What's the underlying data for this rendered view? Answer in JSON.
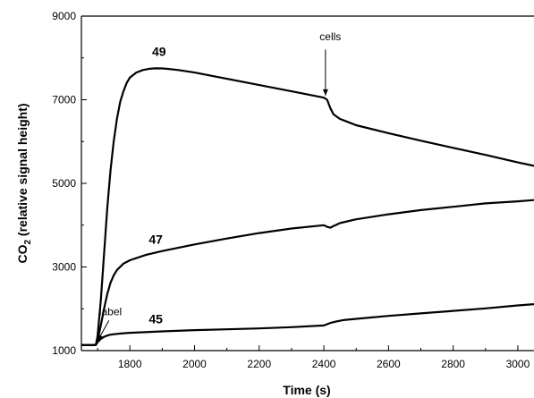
{
  "chart_data": {
    "type": "line",
    "title": "",
    "xlabel": "Time (s)",
    "ylabel_main": "CO",
    "ylabel_sub": "2",
    "ylabel_rest": " (relative signal height)",
    "xlim": [
      1650,
      3050
    ],
    "ylim": [
      1000,
      9000
    ],
    "x_ticks": [
      1800,
      2000,
      2200,
      2400,
      2600,
      2800,
      3000
    ],
    "x_tick_labels": [
      "1800",
      "2000",
      "2200",
      "2400",
      "2600",
      "2800",
      "3000"
    ],
    "y_ticks": [
      1000,
      3000,
      5000,
      7000,
      9000
    ],
    "y_tick_labels": [
      "1000",
      "3000",
      "5000",
      "7000",
      "9000"
    ],
    "series": [
      {
        "name": "49",
        "x": [
          1650,
          1690,
          1695,
          1700,
          1710,
          1720,
          1730,
          1740,
          1750,
          1760,
          1770,
          1780,
          1790,
          1800,
          1820,
          1840,
          1860,
          1880,
          1900,
          1920,
          1950,
          2000,
          2100,
          2200,
          2300,
          2400,
          2410,
          2420,
          2430,
          2450,
          2480,
          2500,
          2600,
          2700,
          2800,
          2900,
          3000,
          3050
        ],
        "y": [
          1130,
          1130,
          1150,
          1350,
          2200,
          3300,
          4400,
          5300,
          6000,
          6550,
          6950,
          7200,
          7400,
          7530,
          7650,
          7710,
          7740,
          7750,
          7748,
          7735,
          7710,
          7650,
          7500,
          7350,
          7200,
          7050,
          7000,
          6800,
          6650,
          6540,
          6450,
          6390,
          6200,
          6020,
          5850,
          5680,
          5500,
          5420
        ]
      },
      {
        "name": "47",
        "x": [
          1650,
          1690,
          1695,
          1700,
          1710,
          1720,
          1730,
          1740,
          1750,
          1760,
          1780,
          1800,
          1850,
          1900,
          2000,
          2100,
          2200,
          2300,
          2400,
          2410,
          2420,
          2430,
          2450,
          2500,
          2600,
          2700,
          2800,
          2900,
          3000,
          3050
        ],
        "y": [
          1130,
          1130,
          1140,
          1250,
          1600,
          2000,
          2350,
          2620,
          2800,
          2930,
          3080,
          3160,
          3290,
          3380,
          3540,
          3680,
          3810,
          3920,
          4000,
          3960,
          3940,
          3980,
          4050,
          4140,
          4260,
          4360,
          4440,
          4520,
          4570,
          4600
        ]
      },
      {
        "name": "45",
        "x": [
          1650,
          1690,
          1695,
          1700,
          1710,
          1720,
          1730,
          1740,
          1760,
          1780,
          1800,
          1900,
          2000,
          2100,
          2200,
          2300,
          2400,
          2410,
          2420,
          2440,
          2460,
          2500,
          2600,
          2700,
          2800,
          2900,
          3000,
          3050
        ],
        "y": [
          1130,
          1130,
          1140,
          1200,
          1280,
          1330,
          1360,
          1380,
          1400,
          1415,
          1425,
          1460,
          1490,
          1510,
          1530,
          1560,
          1600,
          1630,
          1660,
          1700,
          1730,
          1760,
          1830,
          1890,
          1950,
          2010,
          2080,
          2110
        ]
      }
    ],
    "series_label_positions": [
      {
        "name": "49",
        "x": 1890,
        "y": 8050
      },
      {
        "name": "47",
        "x": 1880,
        "y": 3560
      },
      {
        "name": "45",
        "x": 1880,
        "y": 1650
      }
    ],
    "annotations": [
      {
        "text": "cells",
        "text_x": 2420,
        "text_y": 8420,
        "arrow_from": [
          2405,
          8200
        ],
        "arrow_to": [
          2405,
          7100
        ]
      },
      {
        "text": "label",
        "text_x": 1740,
        "text_y": 1850,
        "arrow_from": [
          1735,
          1720
        ],
        "arrow_to": [
          1700,
          1230
        ]
      }
    ],
    "grid": false,
    "line_color": "#000000"
  }
}
